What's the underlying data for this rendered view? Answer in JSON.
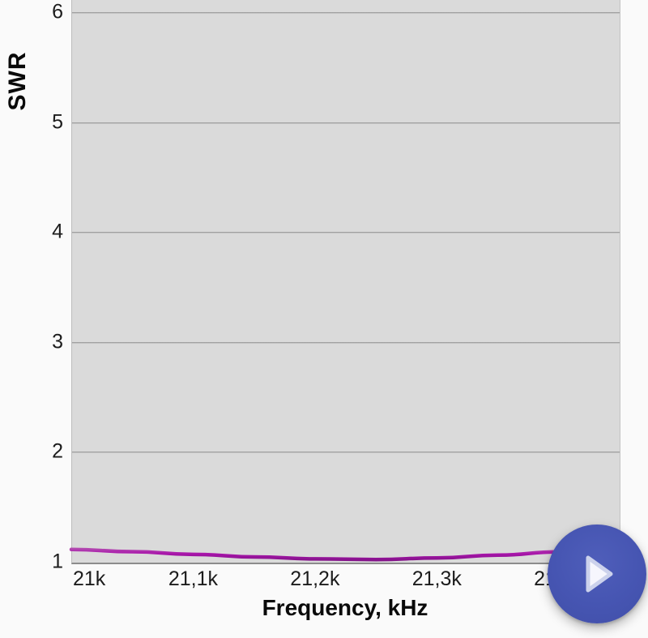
{
  "chart_data": {
    "type": "line",
    "title": "",
    "xlabel": "Frequency, kHz",
    "ylabel": "SWR",
    "xlim": [
      21000,
      21450
    ],
    "ylim_visible": [
      1,
      6.12
    ],
    "grid": "horizontal-only",
    "plot_bg": "#dadada",
    "page_bg": "#fafafa",
    "x_ticks": [
      {
        "value": 21000,
        "label": "21k"
      },
      {
        "value": 21100,
        "label": "21,1k"
      },
      {
        "value": 21200,
        "label": "21,2k"
      },
      {
        "value": 21300,
        "label": "21,3k"
      },
      {
        "value": 21400,
        "label": "21,4k"
      }
    ],
    "y_ticks": [
      {
        "value": 1,
        "label": "1"
      },
      {
        "value": 2,
        "label": "2"
      },
      {
        "value": 3,
        "label": "3"
      },
      {
        "value": 4,
        "label": "4"
      },
      {
        "value": 5,
        "label": "5"
      },
      {
        "value": 6,
        "label": "6"
      }
    ],
    "series": [
      {
        "name": "SWR",
        "color": "#a915ab",
        "color_top": "#b65ab2",
        "color_bottom": "#7c1283",
        "x": [
          21000,
          21050,
          21100,
          21150,
          21200,
          21250,
          21300,
          21350,
          21400,
          21450
        ],
        "values": [
          1.12,
          1.1,
          1.075,
          1.052,
          1.034,
          1.028,
          1.042,
          1.068,
          1.098,
          1.12
        ]
      }
    ]
  },
  "fab": {
    "icon": "play-icon",
    "bg": "#4655b2",
    "triangle_fill": "#f6f6fd",
    "triangle_stroke": "#ccd2ec"
  }
}
